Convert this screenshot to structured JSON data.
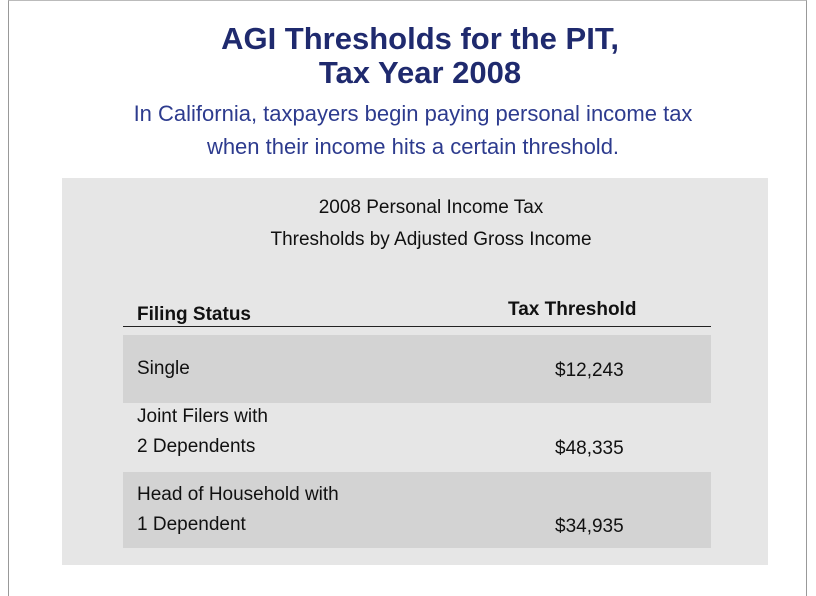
{
  "header": {
    "title": [
      "AGI Thresholds for the PIT,",
      "Tax Year 2008"
    ],
    "subtitle": [
      "In California, taxpayers begin paying personal income tax",
      "when their income hits a certain threshold."
    ]
  },
  "table": {
    "caption": [
      "2008 Personal Income Tax",
      "Thresholds by Adjusted Gross Income"
    ],
    "columns": [
      "Filing Status",
      "Tax Threshold"
    ],
    "rows": [
      [
        [
          "Single"
        ],
        "$12,243"
      ],
      [
        [
          "Joint Filers with",
          "2 Dependents"
        ],
        "$48,335"
      ],
      [
        [
          "Head of Household with",
          "1 Dependent"
        ],
        "$34,935"
      ]
    ]
  }
}
